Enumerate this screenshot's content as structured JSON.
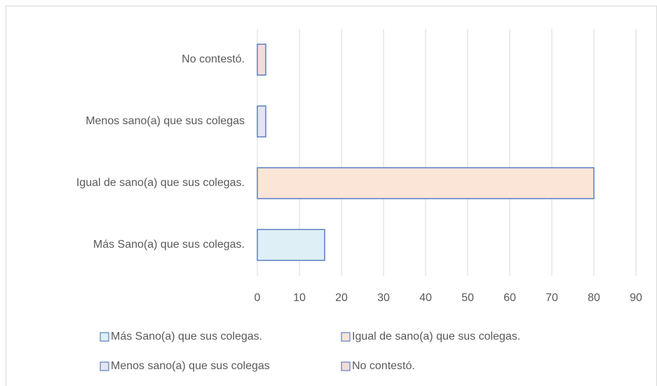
{
  "chart_data": {
    "type": "bar",
    "orientation": "horizontal",
    "categories": [
      "Más Sano(a) que sus colegas.",
      "Igual de sano(a) que sus colegas.",
      "Menos sano(a) que sus colegas",
      "No contestó."
    ],
    "values": [
      16,
      80,
      2,
      2
    ],
    "colors": [
      "#deeff5",
      "#fbe5d6",
      "#e5e4f2",
      "#f6dcd8"
    ],
    "edge_color": "#5a7fc0",
    "xlim": [
      0,
      90
    ],
    "xticks": [
      0,
      10,
      20,
      30,
      40,
      50,
      60,
      70,
      80,
      90
    ],
    "grid": true,
    "legend": "bottom"
  }
}
